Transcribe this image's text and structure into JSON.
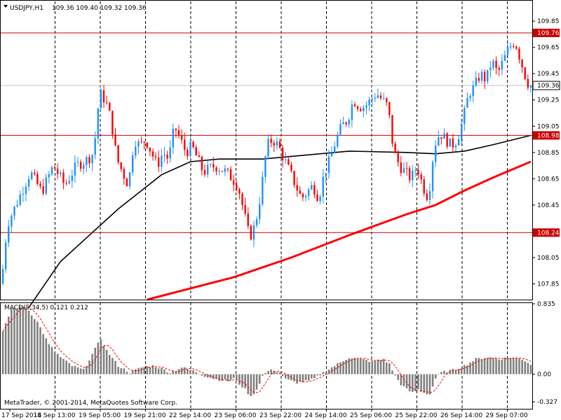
{
  "header": {
    "symbol": "USDJPY,H1",
    "ohlc": "109.36 109.40 109.32 109.36"
  },
  "macd": {
    "title": "MACD(5,34,5) 0.121 0.212"
  },
  "copyright": "MetaTrader, © 2001-2014, MetaQuotes Software Corp.",
  "icons": {
    "menu": "triangle-down-icon"
  },
  "colors": {
    "bull": "#1e90ff",
    "bear": "#ff0000",
    "ma_slow": "#ff0000",
    "ma_fast": "#000000",
    "hline": "#cc0000",
    "macd_hist": "#808080",
    "macd_signal": "#ff0000"
  },
  "chart_data": [
    {
      "type": "candlestick",
      "title": "USDJPY,H1",
      "ylim": [
        107.73,
        110.0
      ],
      "price_ticks": [
        "109.85",
        "109.65",
        "109.45",
        "109.25",
        "109.05",
        "108.85",
        "108.65",
        "108.45",
        "108.05",
        "107.85"
      ],
      "x_ticks": [
        "17 Sep 2014",
        "18 Sep 13:00",
        "19 Sep 05:00",
        "19 Sep 21:00",
        "22 Sep 14:00",
        "23 Sep 06:00",
        "23 Sep 22:00",
        "24 Sep 14:00",
        "25 Sep 06:00",
        "25 Sep 22:00",
        "26 Sep 14:00",
        "29 Sep 07:00"
      ],
      "horizontal_levels": [
        {
          "value": 109.76,
          "label": "109.76"
        },
        {
          "value": 108.98,
          "label": "108.98"
        },
        {
          "value": 108.24,
          "label": "108.24"
        }
      ],
      "current_price": {
        "value": 109.36,
        "label": "109.36"
      },
      "anchors": [
        [
          0,
          107.85
        ],
        [
          2,
          108.3
        ],
        [
          6,
          108.5
        ],
        [
          10,
          108.7
        ],
        [
          14,
          108.55
        ],
        [
          18,
          108.75
        ],
        [
          22,
          108.6
        ],
        [
          26,
          108.75
        ],
        [
          30,
          108.8
        ],
        [
          32,
          108.85
        ],
        [
          34,
          109.3
        ],
        [
          36,
          109.25
        ],
        [
          38,
          109.1
        ],
        [
          40,
          108.8
        ],
        [
          42,
          108.7
        ],
        [
          44,
          108.6
        ],
        [
          46,
          108.95
        ],
        [
          48,
          108.9
        ],
        [
          50,
          108.95
        ],
        [
          52,
          108.85
        ],
        [
          54,
          108.75
        ],
        [
          56,
          108.85
        ],
        [
          58,
          108.8
        ],
        [
          60,
          109.05
        ],
        [
          62,
          108.95
        ],
        [
          64,
          108.85
        ],
        [
          66,
          108.9
        ],
        [
          68,
          108.8
        ],
        [
          70,
          108.7
        ],
        [
          74,
          108.75
        ],
        [
          78,
          108.7
        ],
        [
          82,
          108.6
        ],
        [
          84,
          108.4
        ],
        [
          86,
          108.2
        ],
        [
          88,
          108.3
        ],
        [
          90,
          108.55
        ],
        [
          92,
          108.9
        ],
        [
          94,
          108.95
        ],
        [
          96,
          108.9
        ],
        [
          98,
          108.8
        ],
        [
          100,
          108.7
        ],
        [
          102,
          108.6
        ],
        [
          104,
          108.5
        ],
        [
          106,
          108.55
        ],
        [
          108,
          108.6
        ],
        [
          110,
          108.5
        ],
        [
          112,
          108.7
        ],
        [
          114,
          108.8
        ],
        [
          116,
          108.95
        ],
        [
          118,
          109.05
        ],
        [
          120,
          109.1
        ],
        [
          122,
          109.25
        ],
        [
          124,
          109.2
        ],
        [
          126,
          109.2
        ],
        [
          128,
          109.25
        ],
        [
          130,
          109.3
        ],
        [
          132,
          109.25
        ],
        [
          134,
          109.2
        ],
        [
          136,
          108.85
        ],
        [
          138,
          108.75
        ],
        [
          140,
          108.7
        ],
        [
          142,
          108.65
        ],
        [
          144,
          108.75
        ],
        [
          146,
          108.6
        ],
        [
          148,
          108.5
        ],
        [
          150,
          108.9
        ],
        [
          152,
          109.0
        ],
        [
          154,
          108.95
        ],
        [
          156,
          108.9
        ],
        [
          158,
          108.95
        ],
        [
          160,
          109.1
        ],
        [
          162,
          109.3
        ],
        [
          164,
          109.35
        ],
        [
          166,
          109.45
        ],
        [
          168,
          109.4
        ],
        [
          170,
          109.55
        ],
        [
          172,
          109.45
        ],
        [
          174,
          109.55
        ],
        [
          176,
          109.65
        ],
        [
          178,
          109.7
        ],
        [
          180,
          109.55
        ],
        [
          182,
          109.4
        ],
        [
          183,
          109.36
        ]
      ],
      "series": [
        {
          "name": "",
          "type": "line",
          "color": "#000000",
          "points": [
            [
              9,
              107.67
            ],
            [
              20,
              108.02
            ],
            [
              40,
              108.42
            ],
            [
              55,
              108.68
            ],
            [
              65,
              108.78
            ],
            [
              75,
              108.8
            ],
            [
              90,
              108.8
            ],
            [
              110,
              108.84
            ],
            [
              120,
              108.86
            ],
            [
              140,
              108.85
            ],
            [
              150,
              108.84
            ],
            [
              160,
              108.86
            ],
            [
              170,
              108.91
            ],
            [
              183,
              108.98
            ]
          ]
        },
        {
          "name": "",
          "type": "line",
          "color": "#ff0000",
          "points": [
            [
              50,
              107.73
            ],
            [
              80,
              107.9
            ],
            [
              100,
              108.05
            ],
            [
              120,
              108.22
            ],
            [
              140,
              108.38
            ],
            [
              150,
              108.45
            ],
            [
              160,
              108.56
            ],
            [
              170,
              108.66
            ],
            [
              183,
              108.78
            ]
          ]
        }
      ]
    },
    {
      "type": "bar",
      "title": "MACD(5,34,5) 0.121 0.212",
      "ylim": [
        -0.327,
        0.835
      ],
      "tick_labels": [
        "0.835",
        "0.00",
        "-0.327"
      ],
      "histogram_anchors": [
        [
          0,
          0.5
        ],
        [
          3,
          0.78
        ],
        [
          8,
          0.8
        ],
        [
          12,
          0.62
        ],
        [
          16,
          0.35
        ],
        [
          20,
          0.2
        ],
        [
          24,
          0.1
        ],
        [
          28,
          0.05
        ],
        [
          32,
          0.3
        ],
        [
          34,
          0.42
        ],
        [
          36,
          0.28
        ],
        [
          40,
          0.1
        ],
        [
          44,
          0.02
        ],
        [
          48,
          0.08
        ],
        [
          52,
          0.1
        ],
        [
          54,
          0.08
        ],
        [
          58,
          0.02
        ],
        [
          62,
          0.08
        ],
        [
          66,
          0.04
        ],
        [
          70,
          -0.02
        ],
        [
          74,
          -0.06
        ],
        [
          78,
          -0.08
        ],
        [
          80,
          -0.05
        ],
        [
          84,
          -0.18
        ],
        [
          86,
          -0.27
        ],
        [
          88,
          -0.18
        ],
        [
          90,
          -0.02
        ],
        [
          92,
          0.04
        ],
        [
          94,
          0.05
        ],
        [
          96,
          0.02
        ],
        [
          98,
          -0.06
        ],
        [
          100,
          -0.08
        ],
        [
          102,
          -0.1
        ],
        [
          106,
          -0.08
        ],
        [
          108,
          -0.05
        ],
        [
          112,
          0.04
        ],
        [
          116,
          0.12
        ],
        [
          120,
          0.2
        ],
        [
          124,
          0.18
        ],
        [
          128,
          0.15
        ],
        [
          132,
          0.18
        ],
        [
          134,
          0.12
        ],
        [
          136,
          -0.02
        ],
        [
          138,
          -0.12
        ],
        [
          140,
          -0.18
        ],
        [
          142,
          -0.22
        ],
        [
          144,
          -0.18
        ],
        [
          146,
          -0.22
        ],
        [
          148,
          -0.24
        ],
        [
          150,
          -0.05
        ],
        [
          152,
          0.02
        ],
        [
          156,
          0.05
        ],
        [
          160,
          0.1
        ],
        [
          164,
          0.18
        ],
        [
          168,
          0.2
        ],
        [
          172,
          0.18
        ],
        [
          176,
          0.2
        ],
        [
          180,
          0.18
        ],
        [
          183,
          0.12
        ]
      ]
    }
  ]
}
